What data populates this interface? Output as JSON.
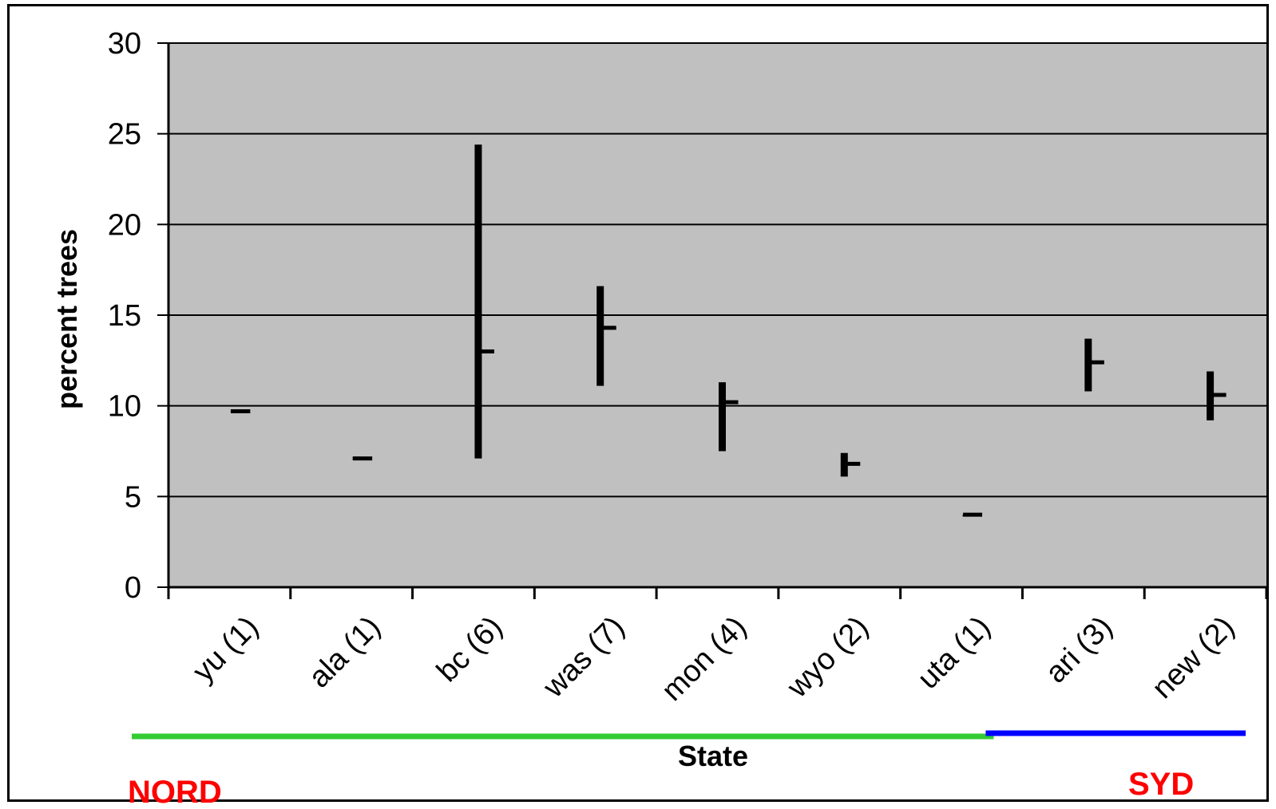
{
  "chart_data": {
    "type": "high-low-close",
    "xlabel": "State",
    "ylabel": "percent trees",
    "ylim": [
      0,
      30
    ],
    "yticks": [
      "0",
      "5",
      "10",
      "15",
      "20",
      "25",
      "30"
    ],
    "grid": true,
    "categories": [
      "yu (1)",
      "ala (1)",
      "bc (6)",
      "was (7)",
      "mon (4)",
      "wyo (2)",
      "uta (1)",
      "ari (3)",
      "new (2)"
    ],
    "series": [
      {
        "high": [
          9.8,
          7.2,
          24.4,
          16.6,
          11.3,
          7.4,
          4.0,
          13.7,
          11.9
        ],
        "low": [
          9.6,
          7.0,
          7.1,
          11.1,
          7.5,
          6.1,
          3.9,
          10.8,
          9.2
        ],
        "close": [
          9.7,
          7.1,
          13.0,
          14.3,
          10.2,
          6.8,
          4.0,
          12.4,
          10.6
        ]
      }
    ],
    "plot_background": "#c0c0c0",
    "groups": [
      {
        "label": "NORD",
        "category_span": [
          0,
          6
        ],
        "line_color": "#33cc33",
        "label_color": "#ff0000"
      },
      {
        "label": "SYD",
        "category_span": [
          7,
          8
        ],
        "line_color": "#0000ff",
        "label_color": "#ff0000"
      }
    ]
  }
}
